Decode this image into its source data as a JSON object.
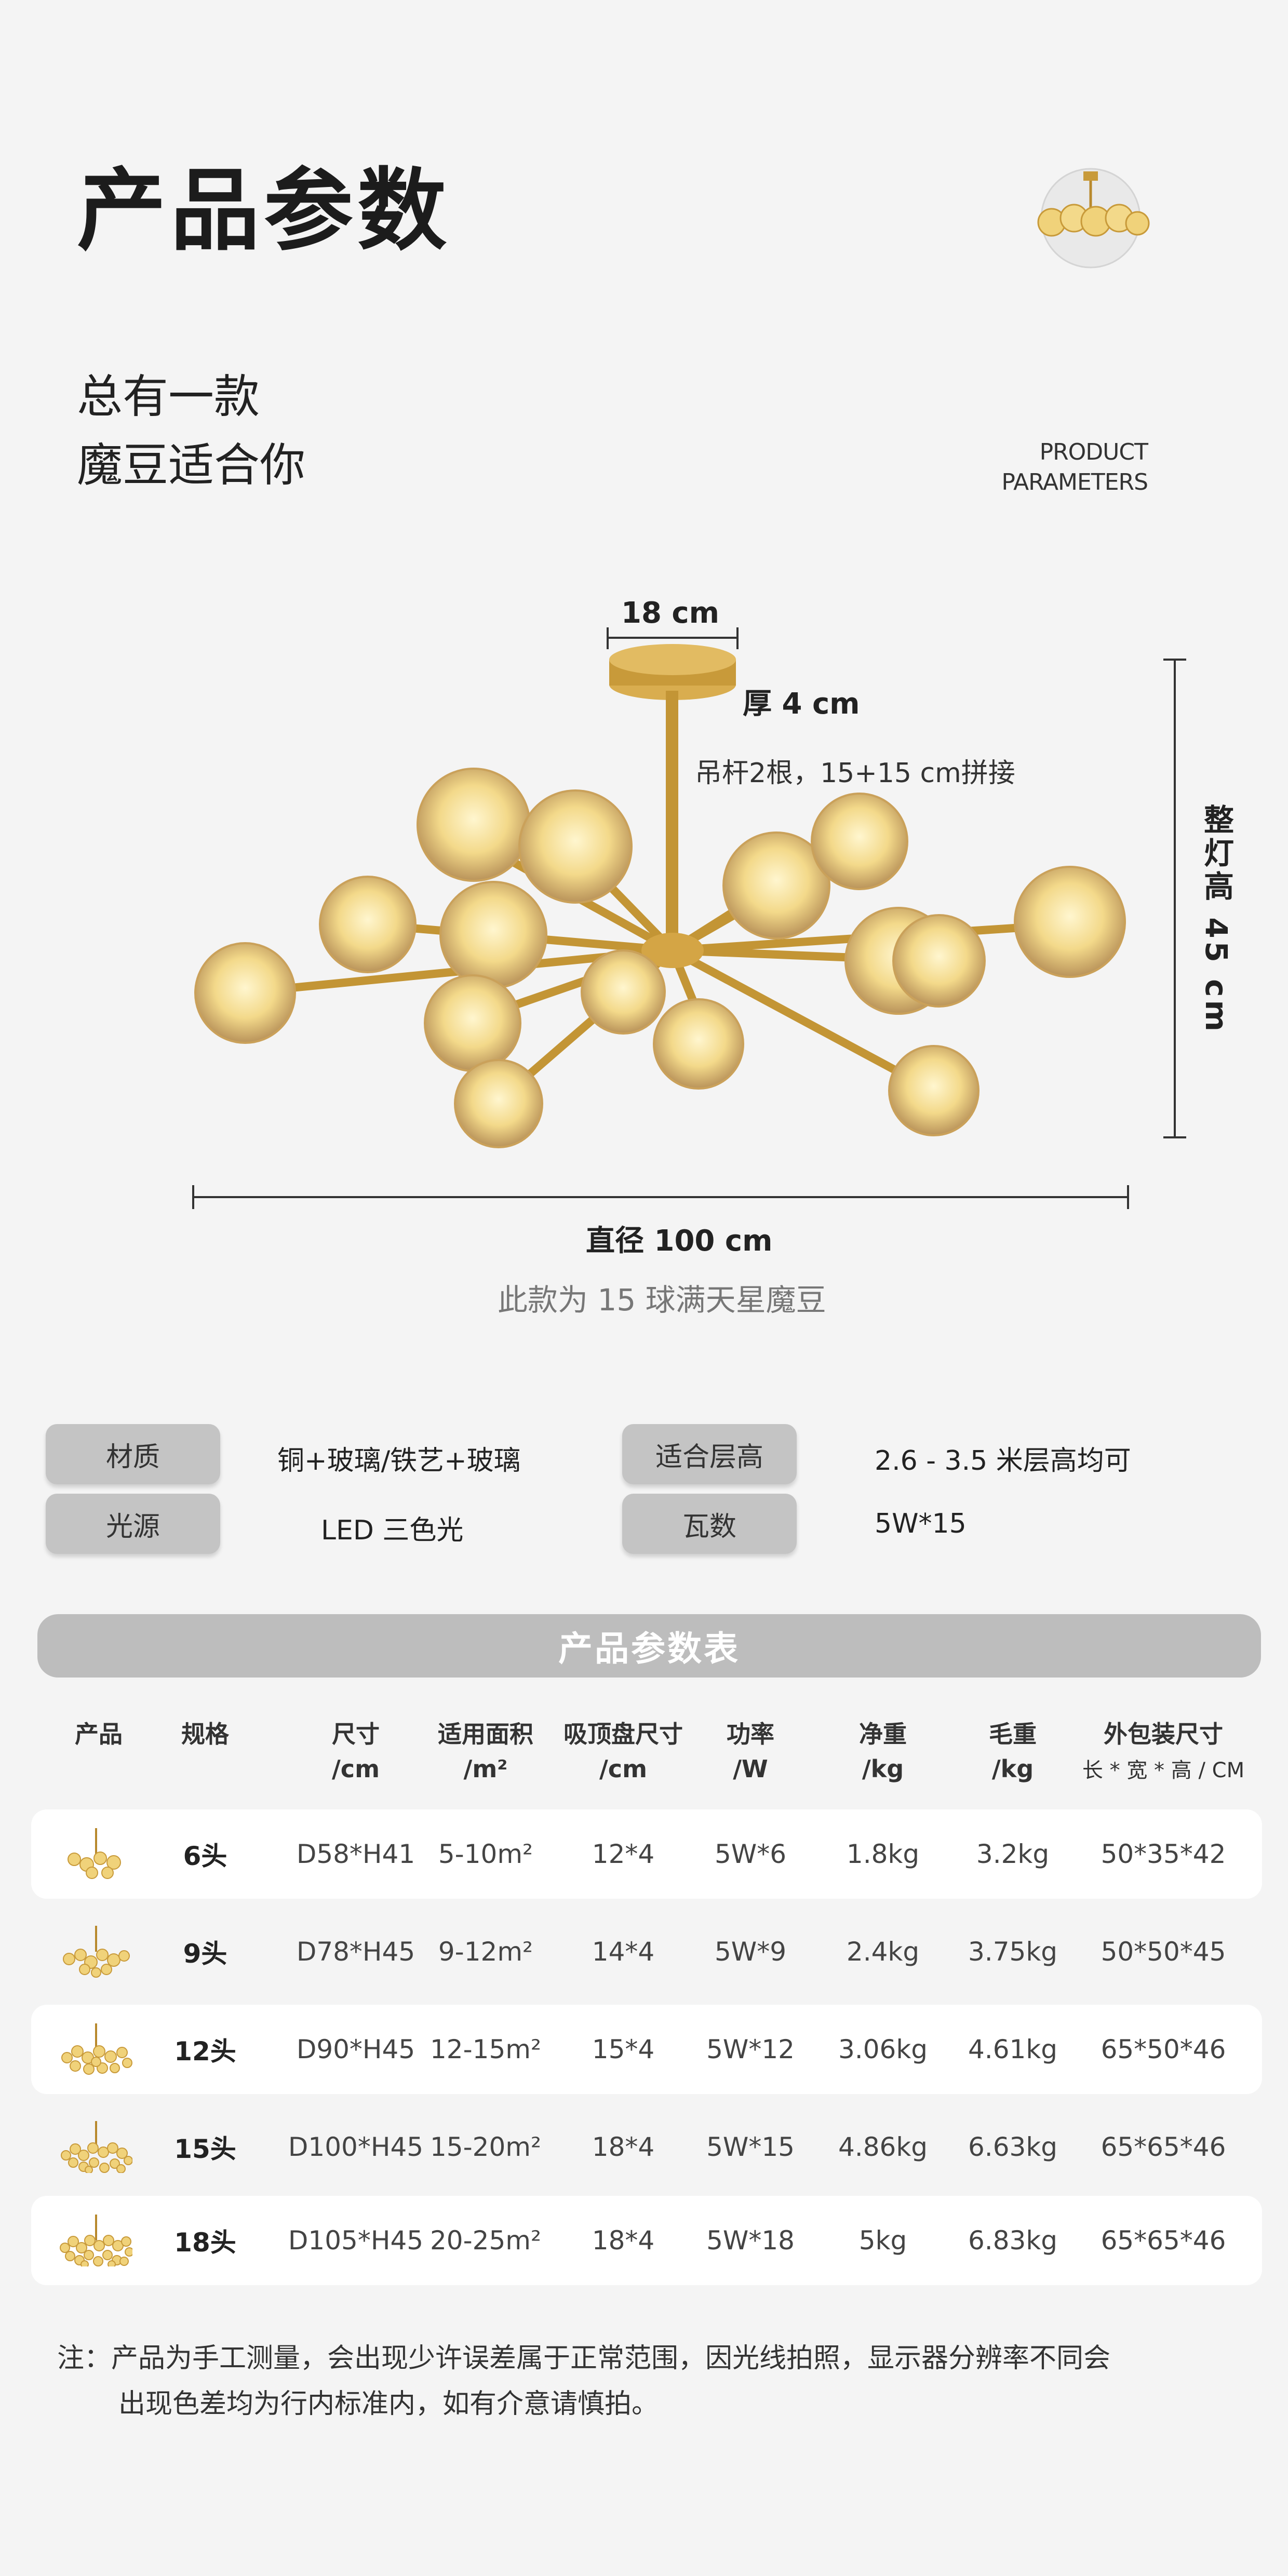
{
  "header": {
    "title": "产品参数",
    "subtitle_line1": "总有一款",
    "subtitle_line2": "魔豆适合你",
    "en_line1": "PRODUCT",
    "en_line2": "PARAMETERS"
  },
  "diagram": {
    "canopy_width": "18 cm",
    "canopy_thickness": "厚 4 cm",
    "rod_note": "吊杆2根，15+15 cm拼接",
    "total_height": "整灯高 45 cm",
    "diameter": "直径 100 cm",
    "model_note": "此款为 15 球满天星魔豆",
    "colors": {
      "brass": "#c89a3a",
      "globe": "#f3d98a",
      "line": "#333333"
    }
  },
  "specs": [
    {
      "label": "材质",
      "value": "铜+玻璃/铁艺+玻璃"
    },
    {
      "label": "适合层高",
      "value": "2.6 - 3.5 米层高均可"
    },
    {
      "label": "光源",
      "value": "LED 三色光"
    },
    {
      "label": "瓦数",
      "value": "5W*15"
    }
  ],
  "table": {
    "banner": "产品参数表",
    "headers": [
      {
        "l1": "产品",
        "l2": ""
      },
      {
        "l1": "规格",
        "l2": ""
      },
      {
        "l1": "尺寸",
        "l2": "/cm"
      },
      {
        "l1": "适用面积",
        "l2": "/m²"
      },
      {
        "l1": "吸顶盘尺寸",
        "l2": "/cm"
      },
      {
        "l1": "功率",
        "l2": "/W"
      },
      {
        "l1": "净重",
        "l2": "/kg"
      },
      {
        "l1": "毛重",
        "l2": "/kg"
      },
      {
        "l1": "外包装尺寸",
        "l2": "长 * 宽 * 高 / CM"
      }
    ],
    "rows": [
      {
        "spec": "6头",
        "size": "D58*H41",
        "area": "5-10m²",
        "canopy": "12*4",
        "power": "5W*6",
        "net": "1.8kg",
        "gross": "3.2kg",
        "pack": "50*35*42"
      },
      {
        "spec": "9头",
        "size": "D78*H45",
        "area": "9-12m²",
        "canopy": "14*4",
        "power": "5W*9",
        "net": "2.4kg",
        "gross": "3.75kg",
        "pack": "50*50*45"
      },
      {
        "spec": "12头",
        "size": "D90*H45",
        "area": "12-15m²",
        "canopy": "15*4",
        "power": "5W*12",
        "net": "3.06kg",
        "gross": "4.61kg",
        "pack": "65*50*46"
      },
      {
        "spec": "15头",
        "size": "D100*H45",
        "area": "15-20m²",
        "canopy": "18*4",
        "power": "5W*15",
        "net": "4.86kg",
        "gross": "6.63kg",
        "pack": "65*65*46"
      },
      {
        "spec": "18头",
        "size": "D105*H45",
        "area": "20-25m²",
        "canopy": "18*4",
        "power": "5W*18",
        "net": "5kg",
        "gross": "6.83kg",
        "pack": "65*65*46"
      }
    ]
  },
  "footnote": {
    "line1": "注：产品为手工测量，会出现少许误差属于正常范围，因光线拍照，显示器分辨率不同会",
    "line2": "出现色差均为行内标准内，如有介意请慎拍。"
  }
}
